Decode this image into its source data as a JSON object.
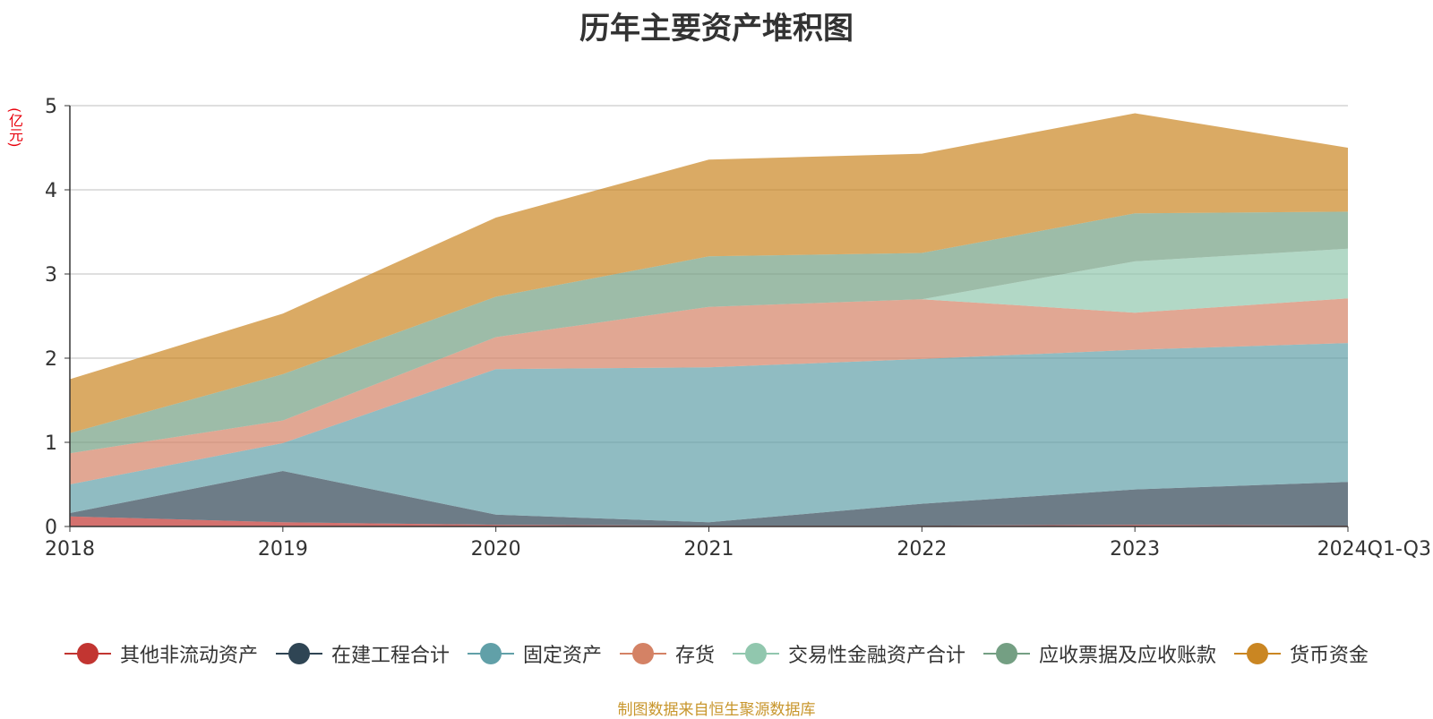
{
  "chart_data": {
    "type": "area",
    "stacked": true,
    "title": "历年主要资产堆积图",
    "unit_label": "(亿元)",
    "x": [
      "2018",
      "2019",
      "2020",
      "2021",
      "2022",
      "2023",
      "2024Q1-Q3"
    ],
    "ylim": [
      0,
      5
    ],
    "yticks": [
      0,
      1,
      2,
      3,
      4,
      5
    ],
    "grid": true,
    "legend_position": "bottom",
    "series": [
      {
        "name": "其他非流动资产",
        "color": "#c23531",
        "values": [
          0.12,
          0.05,
          0.02,
          0.01,
          0.01,
          0.02,
          0.01
        ]
      },
      {
        "name": "在建工程合计",
        "color": "#2f4554",
        "values": [
          0.04,
          0.61,
          0.12,
          0.04,
          0.26,
          0.42,
          0.52
        ]
      },
      {
        "name": "固定资产",
        "color": "#61a0a8",
        "values": [
          0.34,
          0.33,
          1.73,
          1.84,
          1.72,
          1.66,
          1.65
        ]
      },
      {
        "name": "存货",
        "color": "#d48265",
        "values": [
          0.37,
          0.27,
          0.38,
          0.72,
          0.71,
          0.44,
          0.53
        ]
      },
      {
        "name": "交易性金融资产合计",
        "color": "#91c7ae",
        "values": [
          0,
          0,
          0,
          0,
          0,
          0.61,
          0.59
        ]
      },
      {
        "name": "应收票据及应收账款",
        "color": "#749f83",
        "values": [
          0.24,
          0.55,
          0.48,
          0.6,
          0.55,
          0.57,
          0.44
        ]
      },
      {
        "name": "货币资金",
        "color": "#ca8622",
        "values": [
          0.64,
          0.72,
          0.94,
          1.15,
          1.18,
          1.19,
          0.76
        ]
      }
    ],
    "source_note": "制图数据来自恒生聚源数据库"
  }
}
